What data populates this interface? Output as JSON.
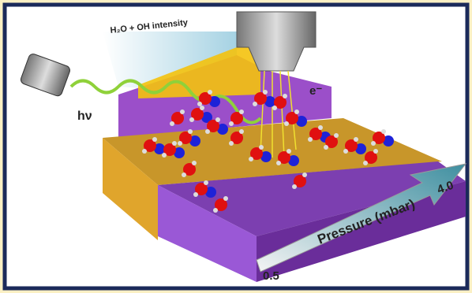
{
  "labels": {
    "intensity": "H₂O + OH intensity",
    "photon": "hν",
    "electron": "e⁻",
    "pressure": "Pressure (mbar)",
    "pressure_low": "0.5",
    "pressure_high": "4.0"
  }
}
